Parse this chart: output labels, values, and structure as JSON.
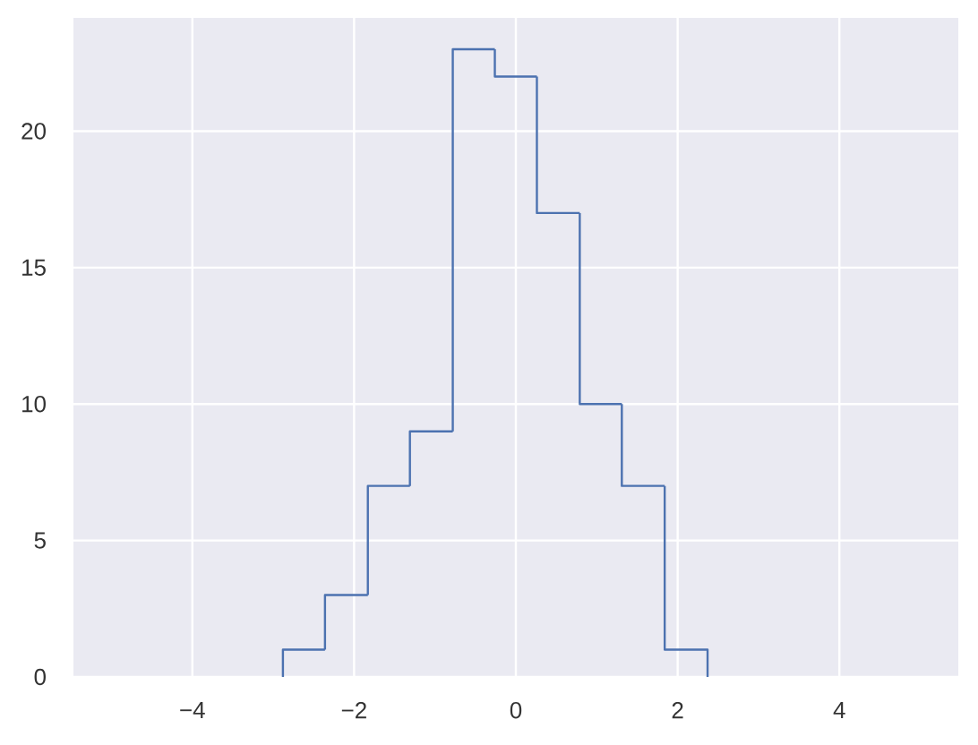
{
  "chart_data": {
    "type": "histogram",
    "bins": [
      -2.88,
      -2.36,
      -1.83,
      -1.31,
      -0.78,
      -0.26,
      0.26,
      0.79,
      1.31,
      1.84,
      2.37
    ],
    "values": [
      1,
      3,
      7,
      9,
      23,
      22,
      17,
      10,
      7,
      1
    ],
    "color": "#4c72b0",
    "xlim": [
      -5.47,
      5.47
    ],
    "ylim": [
      0,
      24.15
    ],
    "xticks": [
      {
        "value": -4,
        "label": "−4"
      },
      {
        "value": -2,
        "label": "−2"
      },
      0,
      2,
      4
    ],
    "yticks": [
      0,
      5,
      10,
      15,
      20
    ],
    "grid": true
  }
}
